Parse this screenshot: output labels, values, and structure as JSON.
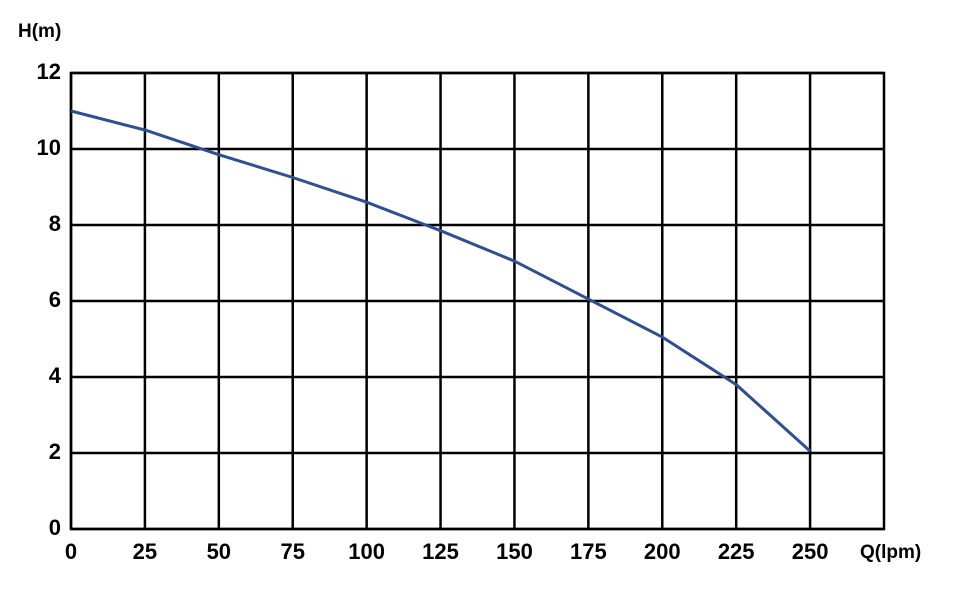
{
  "chart_data": {
    "type": "line",
    "y_label": "H(m)",
    "x_label": "Q(lpm)",
    "x": [
      0,
      25,
      50,
      75,
      100,
      120,
      125,
      150,
      175,
      200,
      225,
      250
    ],
    "values": [
      11,
      10.5,
      9.85,
      9.25,
      8.6,
      8,
      7.85,
      7.05,
      6.05,
      5.05,
      3.8,
      2.05
    ],
    "color": "#2f4f8f",
    "xlim": [
      0,
      275
    ],
    "xticks": [
      0,
      25,
      50,
      75,
      100,
      125,
      150,
      175,
      200,
      225,
      250
    ],
    "ylim": [
      0,
      12
    ],
    "yticks": [
      0,
      2,
      4,
      6,
      8,
      10,
      12
    ],
    "grid": true
  }
}
